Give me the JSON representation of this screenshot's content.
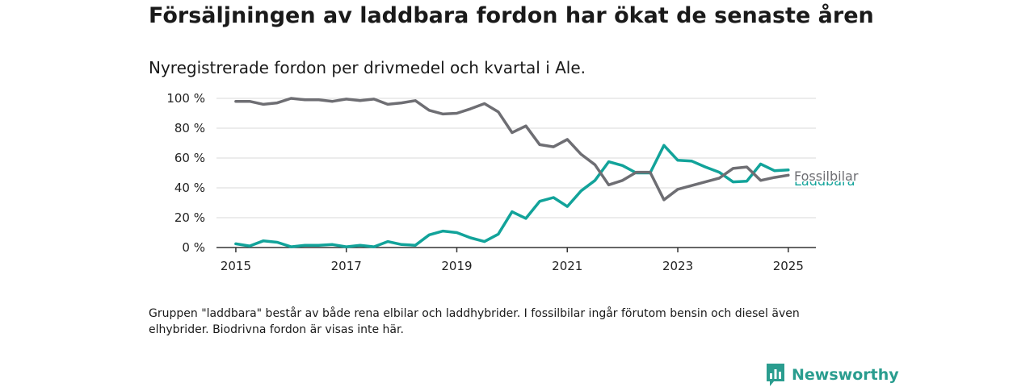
{
  "title": "Försäljningen av laddbara fordon har ökat de senaste åren",
  "subtitle": "Nyregistrerade fordon per drivmedel och kvartal i Ale.",
  "note": "Gruppen \"laddbara\" består av både rena elbilar och laddhybrider. I fossilbilar ingår förutom bensin och diesel även elhybrider. Biodrivna fordon är visas inte här.",
  "logo": {
    "text": "Newsworthy",
    "icon": "newsworthy-chart-icon",
    "color": "#2a9d8f"
  },
  "chart_data": {
    "type": "line",
    "x_ticks": [
      2015,
      2017,
      2019,
      2021,
      2023,
      2025
    ],
    "y_ticks": [
      0,
      20,
      40,
      60,
      80,
      100
    ],
    "y_tick_labels": [
      "0 %",
      "20 %",
      "40 %",
      "60 %",
      "80 %",
      "100 %"
    ],
    "xlim": [
      2014.65,
      2025.5
    ],
    "ylim": [
      0,
      100
    ],
    "grid": "horizontal",
    "x": [
      2015.0,
      2015.25,
      2015.5,
      2015.75,
      2016.0,
      2016.25,
      2016.5,
      2016.75,
      2017.0,
      2017.25,
      2017.5,
      2017.75,
      2018.0,
      2018.25,
      2018.5,
      2018.75,
      2019.0,
      2019.25,
      2019.5,
      2019.75,
      2020.0,
      2020.25,
      2020.5,
      2020.75,
      2021.0,
      2021.25,
      2021.5,
      2021.75,
      2022.0,
      2022.25,
      2022.5,
      2022.75,
      2023.0,
      2023.25,
      2023.5,
      2023.75,
      2024.0,
      2024.25,
      2024.5,
      2024.75,
      2025.0
    ],
    "series": [
      {
        "name": "Fossilbilar",
        "color": "#6e6e73",
        "values": [
          98,
          98,
          96,
          97,
          100,
          99,
          99,
          98,
          99.5,
          98.5,
          99.5,
          96,
          97,
          98.5,
          92,
          89.5,
          90,
          93,
          96.5,
          91,
          77,
          81.5,
          69,
          67.5,
          72.5,
          62.5,
          55.5,
          42,
          45,
          50.5,
          50.5,
          32,
          39,
          41.5,
          44,
          46.5,
          53,
          54,
          45,
          47,
          48.5
        ]
      },
      {
        "name": "Laddbara",
        "color": "#12a39a",
        "values": [
          2.5,
          1,
          4.5,
          3.5,
          0.5,
          1.5,
          1.5,
          2,
          0.5,
          1.5,
          0.5,
          4,
          2,
          1.5,
          8.5,
          11,
          10,
          6.5,
          4,
          9,
          24,
          19.5,
          31,
          33.5,
          27.5,
          38,
          45,
          57.5,
          55,
          50,
          50,
          68.5,
          58.5,
          58,
          54,
          50.5,
          44,
          44.5,
          56,
          51.5,
          52
        ]
      }
    ]
  }
}
